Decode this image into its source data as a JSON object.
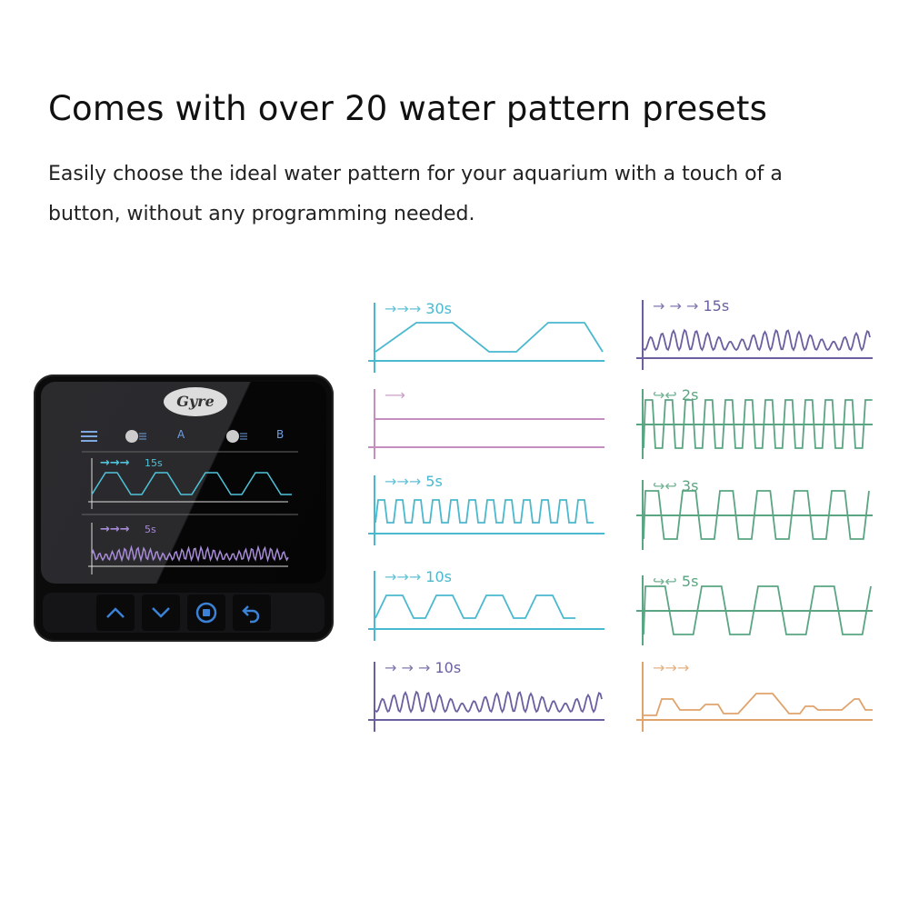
{
  "heading": "Comes with over 20 water pattern presets",
  "subheading": "Easily choose the ideal water pattern for your aquarium with a touch of a button, without any programming needed.",
  "device": {
    "logo": "Gyre",
    "pump_a": "A",
    "pump_b": "B",
    "screen_pattern_1": {
      "arrows": "→→→",
      "label": "15s",
      "color": "#4fc3d9"
    },
    "screen_pattern_2": {
      "arrows": "→→→",
      "label": "5s",
      "color": "#a78bd6"
    },
    "buttons": [
      {
        "icon": "chevron-up-icon"
      },
      {
        "icon": "chevron-down-icon"
      },
      {
        "icon": "stop-icon"
      },
      {
        "icon": "back-icon"
      }
    ],
    "accent": "#3b82d6"
  },
  "patterns": [
    {
      "arrows": "→→→",
      "label": "30s",
      "color": "#4ab8cf",
      "type": "trap-slow"
    },
    {
      "arrows": "⟶",
      "label": "",
      "color": "#c48fbf",
      "type": "constant"
    },
    {
      "arrows": "→→→",
      "label": "5s",
      "color": "#4ab8cf",
      "type": "square"
    },
    {
      "arrows": "→→→",
      "label": "10s",
      "color": "#4ab8cf",
      "type": "trap"
    },
    {
      "arrows": "→ → →",
      "label": "10s",
      "color": "#6b5fa0",
      "type": "random"
    },
    {
      "arrows": "→ → →",
      "label": "15s",
      "color": "#6b5fa0",
      "type": "random"
    },
    {
      "arrows": "↪↩",
      "label": "2s",
      "color": "#5aa582",
      "type": "alt-fast"
    },
    {
      "arrows": "↪↩",
      "label": "3s",
      "color": "#5aa582",
      "type": "alt-mid"
    },
    {
      "arrows": "↪↩",
      "label": "5s",
      "color": "#5aa582",
      "type": "alt-slow"
    },
    {
      "arrows": "→→→",
      "label": "",
      "color": "#e0a36c",
      "type": "orange"
    }
  ]
}
